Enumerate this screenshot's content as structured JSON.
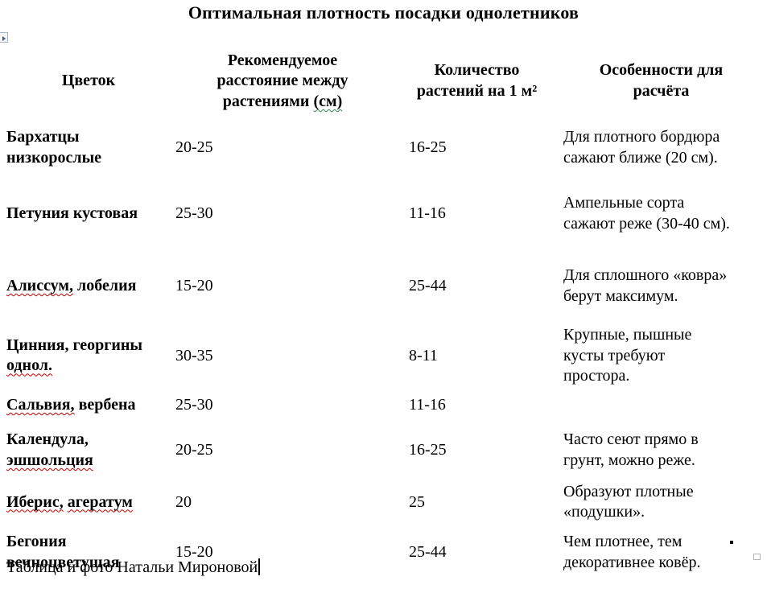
{
  "page": {
    "title": "Оптимальная плотность посадки однолетников",
    "footer_caption": "Таблица и фото Натальи Мироновой"
  },
  "colors": {
    "background": "#ffffff",
    "text": "#000000",
    "spellcheck_underline": "#c00000",
    "grammar_underline": "#2e8b57"
  },
  "icons": {
    "top_left": "object-anchor-icon",
    "bottom_right_black": "table-resize-handle",
    "bottom_right_gray": "text-boundary-mark",
    "caret": "text-cursor"
  },
  "table": {
    "headers": [
      {
        "segments": [
          {
            "t": "Цветок",
            "sp": null
          }
        ]
      },
      {
        "segments": [
          {
            "t": "Рекомендуемое расстояние между растениями ",
            "sp": null
          },
          {
            "t": "(см)",
            "sp": "green"
          }
        ]
      },
      {
        "segments": [
          {
            "t": "Количество растений на 1 м²",
            "sp": null
          }
        ]
      },
      {
        "segments": [
          {
            "t": "Особенности для расчёта",
            "sp": null
          }
        ]
      }
    ],
    "rows": [
      {
        "flower": [
          {
            "t": "Бархатцы низкорослые",
            "sp": null
          }
        ],
        "distance": "20-25",
        "density": "16-25",
        "note": "Для плотного бордюра сажают ближе (20 см)."
      },
      {
        "flower": [
          {
            "t": "Петуния кустовая",
            "sp": null
          }
        ],
        "distance": "25-30",
        "density": "11-16",
        "note": "Ампельные сорта сажают реже (30-40 см)."
      },
      {
        "flower": [
          {
            "t": "Алиссум,",
            "sp": "red"
          },
          {
            "t": " лобелия",
            "sp": null
          }
        ],
        "distance": "15-20",
        "density": "25-44",
        "note": "Для сплошного «ковра» берут максимум."
      },
      {
        "flower": [
          {
            "t": "Цинния, георгины ",
            "sp": null
          },
          {
            "t": "однол.",
            "sp": "red"
          }
        ],
        "distance": "30-35",
        "density": "8-11",
        "note": "Крупные, пышные кусты требуют простора."
      },
      {
        "flower": [
          {
            "t": "Сальвия,",
            "sp": "red"
          },
          {
            "t": " вербена",
            "sp": null
          }
        ],
        "distance": "25-30",
        "density": "11-16",
        "note": ""
      },
      {
        "flower": [
          {
            "t": "Календула, ",
            "sp": null
          },
          {
            "t": "эшшольция",
            "sp": "red"
          }
        ],
        "distance": "20-25",
        "density": "16-25",
        "note": "Часто сеют прямо в грунт, можно реже."
      },
      {
        "flower": [
          {
            "t": "Иберис,",
            "sp": "red"
          },
          {
            "t": " ",
            "sp": null
          },
          {
            "t": "агератум",
            "sp": "red"
          }
        ],
        "distance": "20",
        "density": "25",
        "note": "Образуют плотные «подушки»."
      },
      {
        "flower": [
          {
            "t": "Бегония вечноцветущая",
            "sp": null
          }
        ],
        "distance": "15-20",
        "density": "25-44",
        "note": "Чем плотнее, тем декоративнее ковёр."
      }
    ]
  }
}
